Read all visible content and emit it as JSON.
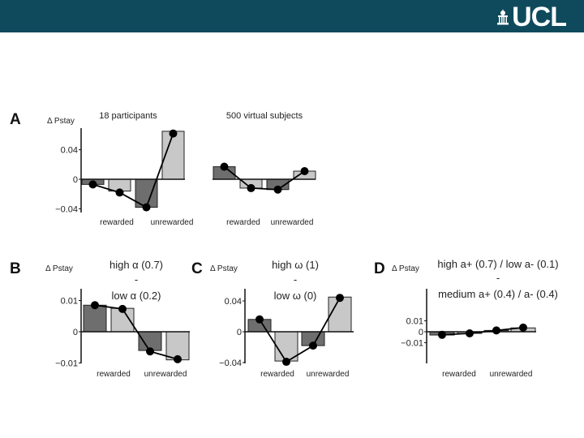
{
  "header": {
    "logo_text": "UCL",
    "colors": {
      "header_bg": "#0f4a5c",
      "logo": "#ffffff"
    }
  },
  "colors": {
    "dark_bar": "#6e6e6e",
    "light_bar": "#c8c8c8",
    "line": "#000000"
  },
  "chart_data": [
    {
      "type": "bar",
      "panel": "A",
      "title": "18 participants",
      "ylabel": "Δ Pstay",
      "yticks": [
        "0.04",
        "0",
        "−0.04"
      ],
      "ylim": [
        -0.04,
        0.065
      ],
      "categories": [
        "rewarded",
        "unrewarded"
      ],
      "bars": [
        -0.007,
        -0.016,
        -0.038,
        0.065
      ],
      "line": [
        -0.007,
        -0.018,
        -0.038,
        0.062
      ]
    },
    {
      "type": "bar",
      "panel": "A",
      "title": "500 virtual subjects",
      "ylim": [
        -0.04,
        0.065
      ],
      "categories": [
        "rewarded",
        "unrewarded"
      ],
      "bars": [
        0.017,
        -0.012,
        -0.014,
        0.011
      ],
      "line": [
        0.017,
        -0.012,
        -0.014,
        0.011
      ]
    },
    {
      "type": "bar",
      "panel": "B",
      "annotation": [
        "high α (0.7)",
        "-",
        "low α (0.2)"
      ],
      "ylabel": "Δ Pstay",
      "yticks": [
        "0.01",
        "0",
        "−0.01"
      ],
      "ylim": [
        -0.01,
        0.012
      ],
      "categories": [
        "rewarded",
        "unrewarded"
      ],
      "bars": [
        0.0085,
        0.0075,
        -0.006,
        -0.009
      ],
      "line": [
        0.0085,
        0.0073,
        -0.0063,
        -0.0088
      ]
    },
    {
      "type": "bar",
      "panel": "C",
      "annotation": [
        "high ω (1)",
        "-",
        "low ω (0)"
      ],
      "ylabel": "Δ Pstay",
      "yticks": [
        "0.04",
        "0",
        "−0.04"
      ],
      "ylim": [
        -0.04,
        0.05
      ],
      "categories": [
        "rewarded",
        "unrewarded"
      ],
      "bars": [
        0.016,
        -0.038,
        -0.018,
        0.045
      ],
      "line": [
        0.016,
        -0.039,
        -0.018,
        0.044
      ]
    },
    {
      "type": "bar",
      "panel": "D",
      "annotation": [
        "high a+ (0.7) / low a- (0.1)",
        "-",
        "medium a+ (0.4) / a- (0.4)"
      ],
      "ylabel": "Δ Pstay",
      "yticks": [
        "0.01",
        "0",
        "−0.01"
      ],
      "ylim": [
        -0.01,
        0.012
      ],
      "categories": [
        "rewarded",
        "unrewarded"
      ],
      "bars": [
        -0.003,
        -0.0015,
        0.0012,
        0.0035
      ],
      "line": [
        -0.0028,
        -0.0015,
        0.0012,
        0.0038
      ]
    }
  ]
}
